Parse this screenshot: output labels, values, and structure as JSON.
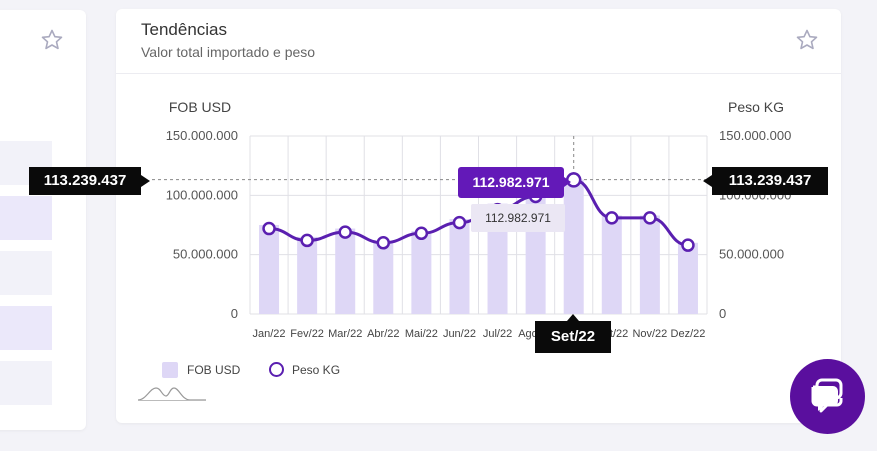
{
  "left_card": {
    "star_icon": "star-outline-icon"
  },
  "card": {
    "title": "Tendências",
    "subtitle": "Valor total importado e peso",
    "star_icon": "star-outline-icon"
  },
  "chart_data": {
    "type": "bar",
    "title": "",
    "categories": [
      "Jan/22",
      "Fev/22",
      "Mar/22",
      "Abr/22",
      "Mai/22",
      "Jun/22",
      "Jul/22",
      "Ago/22",
      "Set/22",
      "Out/22",
      "Nov/22",
      "Dez/22"
    ],
    "series": [
      {
        "name": "FOB USD",
        "type": "bar",
        "axis": "left",
        "color": "#ded7f6",
        "values": [
          75000000,
          65000000,
          72000000,
          61000000,
          70000000,
          80000000,
          93000000,
          103000000,
          113239437,
          83000000,
          83000000,
          60000000
        ]
      },
      {
        "name": "Peso KG",
        "type": "line",
        "axis": "right",
        "color": "#5a1fb0",
        "values": [
          72000000,
          62000000,
          69000000,
          60000000,
          68000000,
          77000000,
          88000000,
          99000000,
          112982971,
          81000000,
          81000000,
          58000000
        ]
      }
    ],
    "y_left": {
      "label": "FOB USD",
      "ticks": [
        "0",
        "50.000.000",
        "100.000.000",
        "150.000.000"
      ],
      "ylim": [
        0,
        150000000
      ]
    },
    "y_right": {
      "label": "Peso KG",
      "ticks": [
        "0",
        "50.000.000",
        "100.000.000",
        "150.000.000"
      ],
      "ylim": [
        0,
        150000000
      ]
    },
    "grid": true,
    "hover": {
      "category_label": "Set/22",
      "left_value_label": "113.239.437",
      "right_value_label": "113.239.437",
      "point_value_label": "112.982.971",
      "point_value_label_secondary": "112.982.971",
      "crosshair_value": 113239437
    }
  },
  "legend": {
    "fob": "FOB USD",
    "peso": "Peso KG"
  },
  "icons": {
    "brush": "chart-brush-icon",
    "chat": "chat-bubble-icon"
  },
  "colors": {
    "accent": "#5a1fb0",
    "bar": "#ded7f6",
    "chat_button": "#5a0f9e"
  }
}
